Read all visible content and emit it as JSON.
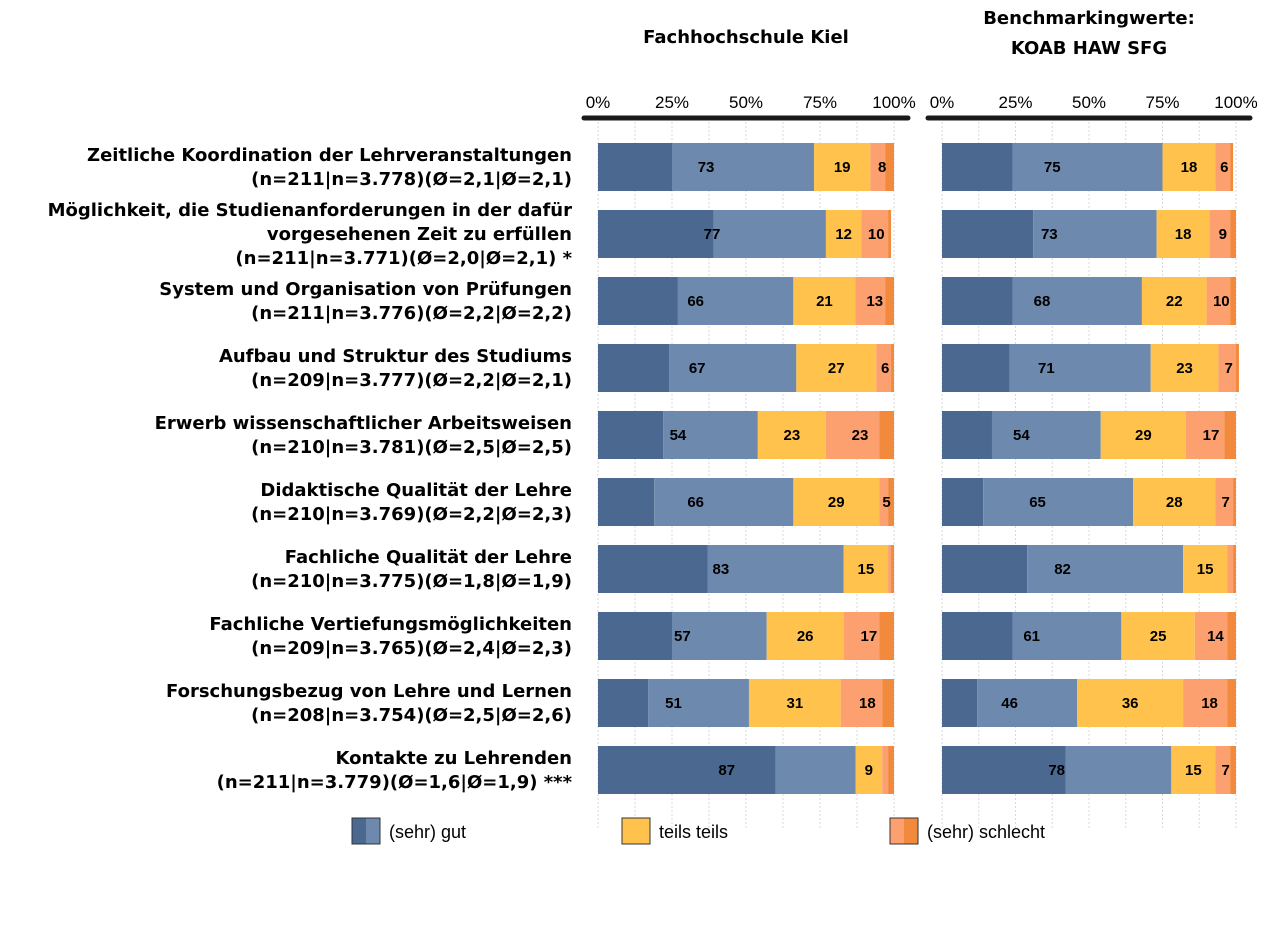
{
  "chart_data": {
    "type": "bar",
    "orientation": "horizontal",
    "stacked": "100%",
    "categories": [
      [
        "Zeitliche Koordination der Lehrveranstaltungen",
        "(n=211|n=3.778)(Ø=2,1|Ø=2,1)"
      ],
      [
        "Möglichkeit, die Studienanforderungen in der dafür",
        "vorgesehenen Zeit zu erfüllen",
        "(n=211|n=3.771)(Ø=2,0|Ø=2,1) *"
      ],
      [
        "System und Organisation von Prüfungen",
        "(n=211|n=3.776)(Ø=2,2|Ø=2,2)"
      ],
      [
        "Aufbau und Struktur des Studiums",
        "(n=209|n=3.777)(Ø=2,2|Ø=2,1)"
      ],
      [
        "Erwerb wissenschaftlicher Arbeitsweisen",
        "(n=210|n=3.781)(Ø=2,5|Ø=2,5)"
      ],
      [
        "Didaktische Qualität der Lehre",
        "(n=210|n=3.769)(Ø=2,2|Ø=2,3)"
      ],
      [
        "Fachliche Qualität der Lehre",
        "(n=210|n=3.775)(Ø=1,8|Ø=1,9)"
      ],
      [
        "Fachliche Vertiefungsmöglichkeiten",
        "(n=209|n=3.765)(Ø=2,4|Ø=2,3)"
      ],
      [
        "Forschungsbezug von Lehre und Lernen",
        "(n=208|n=3.754)(Ø=2,5|Ø=2,6)"
      ],
      [
        "Kontakte zu Lehrenden",
        "(n=211|n=3.779)(Ø=1,6|Ø=1,9) ***"
      ]
    ],
    "xlim": [
      0,
      100
    ],
    "x_ticks": [
      "0%",
      "25%",
      "50%",
      "75%",
      "100%"
    ],
    "grid": true,
    "legend_position": "bottom",
    "legend": [
      {
        "name": "(sehr) gut",
        "colors": [
          "#4a6890",
          "#6e89ae"
        ]
      },
      {
        "name": "teils teils",
        "colors": [
          "#ffc34d",
          "#ffc34d"
        ]
      },
      {
        "name": "(sehr) schlecht",
        "colors": [
          "#fca070",
          "#f28a3e"
        ]
      }
    ],
    "panels": [
      {
        "title": [
          "Fachhochschule Kiel"
        ],
        "segments": [
          [
            25,
            48,
            19,
            5,
            3
          ],
          [
            39,
            38,
            12,
            9,
            1
          ],
          [
            27,
            39,
            21,
            10,
            3
          ],
          [
            24,
            43,
            27,
            5,
            1
          ],
          [
            22,
            32,
            23,
            18,
            5
          ],
          [
            19,
            47,
            29,
            3,
            2
          ],
          [
            37,
            46,
            15,
            1,
            1
          ],
          [
            25,
            32,
            26,
            12,
            5
          ],
          [
            17,
            34,
            31,
            14,
            4
          ],
          [
            60,
            27,
            9,
            2,
            2
          ]
        ],
        "labels": [
          [
            73,
            19,
            8
          ],
          [
            77,
            12,
            10
          ],
          [
            66,
            21,
            13
          ],
          [
            67,
            27,
            6
          ],
          [
            54,
            23,
            23
          ],
          [
            66,
            29,
            5
          ],
          [
            83,
            15,
            null
          ],
          [
            57,
            26,
            17
          ],
          [
            51,
            31,
            18
          ],
          [
            87,
            9,
            null
          ]
        ]
      },
      {
        "title": [
          "Benchmarkingwerte:",
          "KOAB HAW SFG"
        ],
        "segments": [
          [
            24,
            51,
            18,
            5,
            1
          ],
          [
            31,
            42,
            18,
            7,
            2
          ],
          [
            24,
            44,
            22,
            8,
            2
          ],
          [
            23,
            48,
            23,
            6,
            1
          ],
          [
            17,
            37,
            29,
            13,
            4
          ],
          [
            14,
            51,
            28,
            6,
            1
          ],
          [
            29,
            53,
            15,
            2,
            1
          ],
          [
            24,
            37,
            25,
            11,
            3
          ],
          [
            12,
            34,
            36,
            15,
            3
          ],
          [
            42,
            36,
            15,
            5,
            2
          ]
        ],
        "labels": [
          [
            75,
            18,
            6
          ],
          [
            73,
            18,
            9
          ],
          [
            68,
            22,
            10
          ],
          [
            71,
            23,
            7
          ],
          [
            54,
            29,
            17
          ],
          [
            65,
            28,
            7
          ],
          [
            82,
            15,
            null
          ],
          [
            61,
            25,
            14
          ],
          [
            46,
            36,
            18
          ],
          [
            78,
            15,
            7
          ]
        ]
      }
    ]
  }
}
